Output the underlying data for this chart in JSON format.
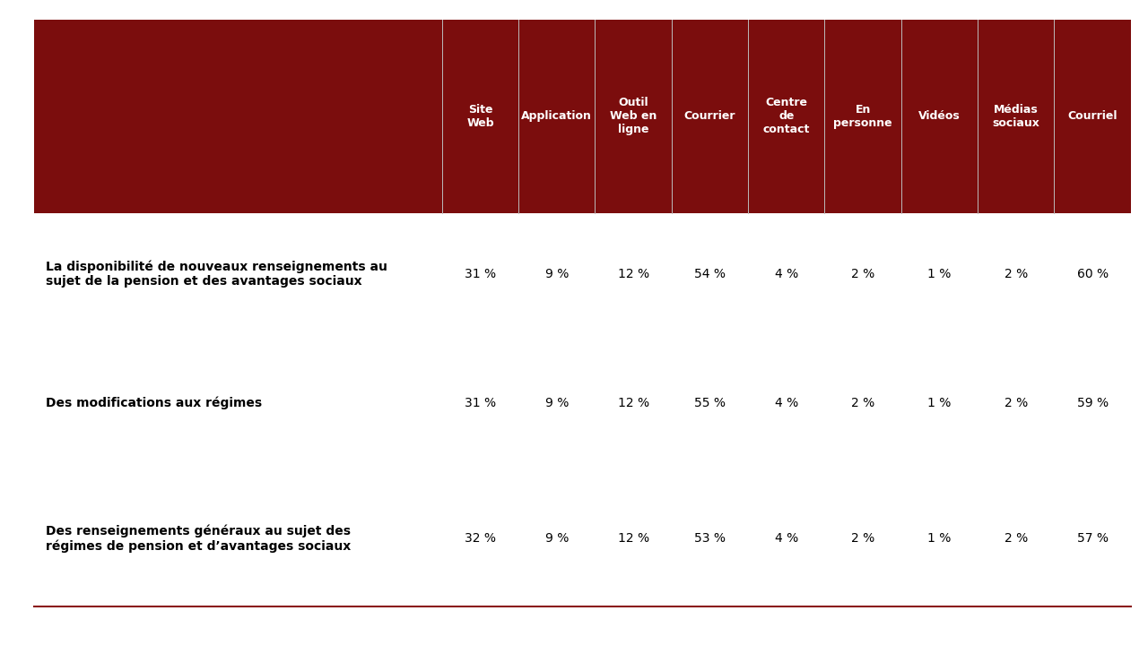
{
  "header_bg_color": "#7B0D0D",
  "header_text_color": "#FFFFFF",
  "body_bg_color": "#FFFFFF",
  "body_text_color": "#000000",
  "divider_color": "#8B1A1A",
  "col_headers": [
    "Site\nWeb",
    "Application",
    "Outil\nWeb en\nligne",
    "Courrier",
    "Centre\nde\ncontact",
    "En\npersonne",
    "Vidéos",
    "Médias\nsociaux",
    "Courriel"
  ],
  "rows": [
    {
      "label": "La disponibilité de nouveaux renseignements au\nsujet de la pension et des avantages sociaux",
      "values": [
        "31 %",
        "9 %",
        "12 %",
        "54 %",
        "4 %",
        "2 %",
        "1 %",
        "2 %",
        "60 %"
      ]
    },
    {
      "label": "Des modifications aux régimes",
      "values": [
        "31 %",
        "9 %",
        "12 %",
        "55 %",
        "4 %",
        "2 %",
        "1 %",
        "2 %",
        "59 %"
      ]
    },
    {
      "label": "Des renseignements généraux au sujet des\nrégimes de pension et d’avantages sociaux",
      "values": [
        "32 %",
        "9 %",
        "12 %",
        "53 %",
        "4 %",
        "2 %",
        "1 %",
        "2 %",
        "57 %"
      ]
    }
  ],
  "figsize": [
    12.8,
    7.2
  ],
  "dpi": 100
}
